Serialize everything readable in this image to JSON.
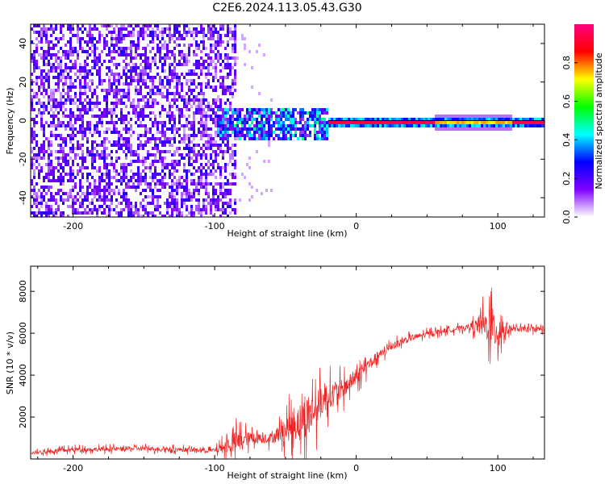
{
  "title": "C2E6.2024.113.05.43.G30",
  "chart_data": [
    {
      "type": "heatmap",
      "xlabel": "Height of straight line (km)",
      "ylabel": "Frequency (Hz)",
      "xlim": [
        -230,
        133
      ],
      "ylim": [
        -50,
        50
      ],
      "xticks": [
        -200,
        -100,
        0,
        100
      ],
      "yticks": [
        -40,
        -20,
        0,
        20,
        40
      ],
      "xtick_labels": [
        "-200",
        "-100",
        "0",
        "100"
      ],
      "ytick_labels": [
        "-40",
        "-20",
        "0",
        "20",
        "40"
      ],
      "colorbar": {
        "label": "Normalized spectral amplitude",
        "range": [
          0,
          1
        ],
        "ticks": [
          0.0,
          0.2,
          0.4,
          0.6,
          0.8
        ],
        "tick_labels": [
          "0.0",
          "0.2",
          "0.4",
          "0.6",
          "0.8"
        ],
        "colors": [
          "#ffffff",
          "#8000ff",
          "#0000ff",
          "#00ffff",
          "#00ff00",
          "#ffff00",
          "#ff0000",
          "#ff0080"
        ]
      },
      "regions": [
        {
          "name": "broadband noise",
          "x": [
            -230,
            -85
          ],
          "freq": [
            -50,
            50
          ],
          "amplitude": 0.15
        },
        {
          "name": "transition cluster",
          "x": [
            -100,
            -20
          ],
          "freq": [
            -10,
            8
          ],
          "amplitude": 0.35
        },
        {
          "name": "carrier line",
          "x": [
            -20,
            133
          ],
          "freq": [
            -1,
            1
          ],
          "amplitude": 0.9
        }
      ]
    },
    {
      "type": "line",
      "xlabel": "Height of straight line (km)",
      "ylabel": "SNR (10 * v/v)",
      "xlim": [
        -230,
        133
      ],
      "ylim": [
        0,
        9200
      ],
      "xticks": [
        -200,
        -100,
        0,
        100
      ],
      "yticks": [
        2000,
        4000,
        6000,
        8000
      ],
      "xtick_labels": [
        "-200",
        "-100",
        "0",
        "100"
      ],
      "ytick_labels": [
        "2000",
        "4000",
        "6000",
        "8000"
      ],
      "color": "#ee2222",
      "series": [
        {
          "x": [
            -230,
            -200,
            -150,
            -100,
            -85,
            -75,
            -60,
            -45,
            -35,
            -20,
            -10,
            0,
            10,
            25,
            40,
            60,
            80,
            90,
            100,
            105,
            110,
            133
          ],
          "y": [
            300,
            450,
            500,
            400,
            800,
            1000,
            1000,
            1600,
            2000,
            3000,
            3300,
            3900,
            4600,
            5400,
            5800,
            6100,
            6300,
            6400,
            6200,
            6200,
            6200,
            6200
          ],
          "spread": [
            200,
            250,
            250,
            250,
            1300,
            700,
            600,
            1800,
            2500,
            1500,
            1200,
            900,
            700,
            450,
            350,
            300,
            300,
            1500,
            2800,
            900,
            300,
            300
          ]
        }
      ]
    }
  ]
}
